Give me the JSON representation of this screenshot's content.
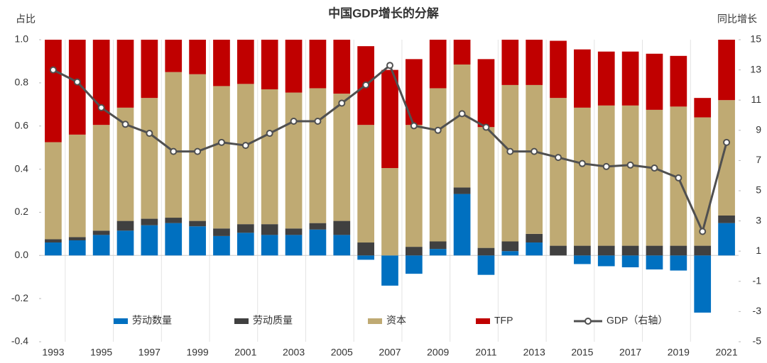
{
  "chart_data": {
    "type": "bar",
    "stacked": true,
    "title": "中国GDP增长的分解",
    "y_label": "占比",
    "y2_label": "同比增长",
    "categories": [
      "1993",
      null,
      "1995",
      null,
      "1997",
      null,
      "1999",
      null,
      "2001",
      null,
      "2003",
      null,
      "2005",
      null,
      "2007",
      null,
      "2009",
      null,
      "2011",
      null,
      "2013",
      null,
      "2015",
      null,
      "2017",
      null,
      "2019",
      null,
      "2021"
    ],
    "series": [
      {
        "name": "劳动数量",
        "color": "#0070c0",
        "values": [
          0.06,
          0.07,
          0.095,
          0.115,
          0.14,
          0.15,
          0.135,
          0.09,
          0.105,
          0.095,
          0.095,
          0.12,
          0.095,
          -0.02,
          -0.14,
          -0.085,
          0.03,
          0.285,
          -0.09,
          0.02,
          0.06,
          0,
          -0.04,
          -0.05,
          -0.055,
          -0.065,
          -0.07,
          -0.265,
          0.15
        ]
      },
      {
        "name": "劳动质量",
        "color": "#404040",
        "values": [
          0.015,
          0.015,
          0.02,
          0.045,
          0.03,
          0.025,
          0.025,
          0.035,
          0.04,
          0.05,
          0.03,
          0.03,
          0.065,
          0.06,
          0,
          0.04,
          0.035,
          0.03,
          0.035,
          0.045,
          0.04,
          0.045,
          0.045,
          0.045,
          0.045,
          0.045,
          0.045,
          0.045,
          0.035
        ]
      },
      {
        "name": "资本",
        "color": "#bfaa73",
        "values": [
          0.45,
          0.475,
          0.49,
          0.525,
          0.56,
          0.675,
          0.68,
          0.66,
          0.65,
          0.625,
          0.63,
          0.625,
          0.59,
          0.545,
          0.405,
          0.565,
          0.71,
          0.57,
          0.56,
          0.725,
          0.69,
          0.685,
          0.64,
          0.65,
          0.65,
          0.63,
          0.645,
          0.595,
          0.535
        ]
      },
      {
        "name": "TFP",
        "color": "#c00000",
        "values": [
          0.475,
          0.44,
          0.395,
          0.315,
          0.27,
          0.15,
          0.16,
          0.215,
          0.205,
          0.23,
          0.245,
          0.225,
          0.25,
          0.365,
          0.455,
          0.305,
          0.225,
          0.115,
          0.315,
          0.21,
          0.21,
          0.265,
          0.27,
          0.25,
          0.25,
          0.26,
          0.235,
          0.09,
          0.28
        ]
      },
      {
        "name": "GDP（右轴）",
        "color": "#505050",
        "axis": "y2",
        "type": "line",
        "values": [
          13.0,
          12.2,
          10.5,
          9.4,
          8.8,
          7.6,
          7.6,
          8.2,
          8.0,
          8.8,
          9.6,
          9.6,
          10.8,
          12.0,
          13.3,
          9.3,
          9.0,
          10.1,
          9.2,
          7.6,
          7.6,
          7.2,
          6.8,
          6.6,
          6.7,
          6.5,
          5.85,
          2.3,
          8.2
        ]
      }
    ],
    "ylim": [
      -0.4,
      1.0
    ],
    "yticks": [
      {
        "value": 1,
        "label": "1.0"
      },
      0.8,
      0.6,
      0.4,
      0.2,
      {
        "value": 0,
        "label": "0.0"
      },
      -0.2,
      -0.4
    ],
    "y2lim": [
      -5,
      15
    ],
    "y2ticks": [
      15,
      13,
      11,
      9,
      7,
      5,
      3,
      1,
      -1,
      -3,
      -5
    ],
    "legend": "bottom"
  }
}
